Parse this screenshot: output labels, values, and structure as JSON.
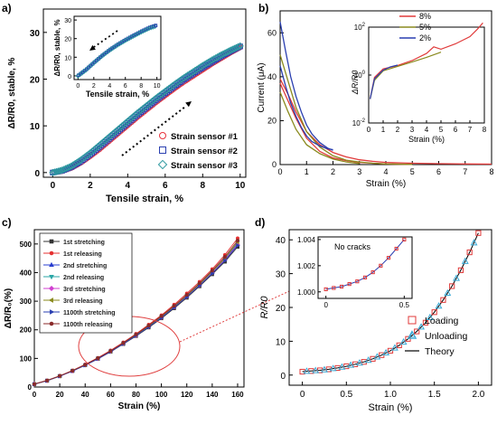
{
  "panel_labels": [
    "a)",
    "b)",
    "c)",
    "d)"
  ],
  "chart_data": [
    {
      "panel": "a)",
      "type": "scatter",
      "xlabel": "Tensile strain, %",
      "ylabel": "ΔR/R0, stable, %",
      "xlim": [
        -0.5,
        10.3
      ],
      "ylim": [
        -1,
        35
      ],
      "xticks": [
        0,
        2,
        4,
        6,
        8,
        10
      ],
      "yticks": [
        0,
        10,
        20,
        30
      ],
      "legend_position": "bottom-right",
      "series": [
        {
          "name": "Strain sensor #1",
          "marker": "circle",
          "color": "#e8323c",
          "x": [
            0,
            0.5,
            1,
            1.5,
            2,
            2.5,
            3,
            3.5,
            4,
            4.5,
            5,
            5.5,
            6,
            6.5,
            7,
            7.5,
            8,
            8.5,
            9,
            9.5,
            10
          ],
          "y": [
            0,
            0.3,
            1.0,
            2.1,
            3.5,
            5.0,
            6.7,
            8.4,
            10.1,
            11.8,
            13.4,
            15.0,
            16.5,
            18.0,
            19.4,
            20.7,
            22.0,
            23.3,
            24.5,
            25.7,
            26.8
          ]
        },
        {
          "name": "Strain sensor #2",
          "marker": "square",
          "color": "#2a3fb0",
          "x": [
            0,
            0.5,
            1,
            1.5,
            2,
            2.5,
            3,
            3.5,
            4,
            4.5,
            5,
            5.5,
            6,
            6.5,
            7,
            7.5,
            8,
            8.5,
            9,
            9.5,
            10
          ],
          "y": [
            0,
            0.4,
            1.2,
            2.4,
            3.9,
            5.5,
            7.2,
            8.9,
            10.6,
            12.3,
            13.9,
            15.5,
            17.0,
            18.5,
            19.9,
            21.2,
            22.5,
            23.7,
            24.9,
            26.0,
            27.0
          ]
        },
        {
          "name": "Strain sensor #3",
          "marker": "diamond",
          "color": "#2f9aa0",
          "x": [
            0,
            0.5,
            1,
            1.5,
            2,
            2.5,
            3,
            3.5,
            4,
            4.5,
            5,
            5.5,
            6,
            6.5,
            7,
            7.5,
            8,
            8.5,
            9,
            9.5,
            10
          ],
          "y": [
            0,
            0.5,
            1.4,
            2.7,
            4.2,
            5.9,
            7.6,
            9.3,
            11.0,
            12.7,
            14.3,
            15.9,
            17.4,
            18.9,
            20.3,
            21.6,
            22.9,
            24.1,
            25.2,
            26.2,
            27.1
          ]
        }
      ],
      "inset": {
        "ylabel": "ΔR/R0, stable, %",
        "xlabel": "Tensile strain, %",
        "xlim": [
          -0.5,
          10.5
        ],
        "ylim": [
          -2,
          32
        ],
        "xticks": [
          0,
          2,
          4,
          6,
          8,
          10
        ],
        "yticks": [
          0,
          10,
          20,
          30
        ],
        "x": [
          0,
          1,
          2,
          3,
          4,
          5,
          6,
          7,
          8,
          9,
          10
        ],
        "y": [
          0,
          3.2,
          7.0,
          10.6,
          13.8,
          16.6,
          19.1,
          21.4,
          23.6,
          25.6,
          27.0
        ]
      }
    },
    {
      "panel": "b)",
      "type": "line",
      "xlabel": "Strain (%)",
      "ylabel": "Current (μA)",
      "xlim": [
        0,
        8
      ],
      "ylim": [
        0,
        70
      ],
      "xticks": [
        0,
        1,
        2,
        3,
        4,
        5,
        6,
        7,
        8
      ],
      "yticks": [
        0,
        20,
        40,
        60
      ],
      "legend_position": "top-right",
      "legend": [
        {
          "name": "8%",
          "color": "#e03a3a"
        },
        {
          "name": "5%",
          "color": "#8a8a1e"
        },
        {
          "name": "2%",
          "color": "#2a3fb0"
        }
      ],
      "series": [
        {
          "color": "#e03a3a",
          "x": [
            0,
            0.3,
            0.6,
            1,
            1.5,
            2,
            2.5,
            3,
            3.5,
            4,
            5,
            6,
            7,
            8
          ],
          "y": [
            39,
            32,
            24,
            15,
            9,
            5.5,
            3.5,
            2.2,
            1.5,
            1.0,
            0.6,
            0.4,
            0.3,
            0.2
          ]
        },
        {
          "color": "#e03a3a",
          "x": [
            0,
            0.3,
            0.6,
            1,
            1.5,
            2,
            2.5,
            3,
            3.5,
            4,
            5
          ],
          "y": [
            37,
            29,
            21,
            12,
            6,
            3,
            1.8,
            1.0,
            0.6,
            0.3,
            0.1
          ]
        },
        {
          "color": "#8a8a1e",
          "x": [
            0,
            0.3,
            0.6,
            1,
            1.5,
            2,
            2.5,
            3,
            3.5,
            4,
            5
          ],
          "y": [
            50,
            38,
            26,
            15,
            8,
            4,
            2,
            1.2,
            0.6,
            0.3,
            0.1
          ]
        },
        {
          "color": "#8a8a1e",
          "x": [
            0,
            0.3,
            0.6,
            1,
            1.5,
            2,
            2.5,
            3
          ],
          "y": [
            33,
            24,
            16,
            9,
            5,
            2.5,
            1.2,
            0.5
          ]
        },
        {
          "color": "#2a3fb0",
          "x": [
            0,
            0.2,
            0.4,
            0.6,
            0.8,
            1,
            1.2,
            1.5,
            1.8,
            2.0
          ],
          "y": [
            65,
            52,
            40,
            31,
            24,
            18,
            14,
            10,
            7.5,
            6.5
          ]
        },
        {
          "color": "#2a3fb0",
          "x": [
            0,
            0.2,
            0.4,
            0.6,
            0.8,
            1,
            1.2,
            1.5,
            1.8,
            2.0
          ],
          "y": [
            45,
            36,
            28,
            22,
            17,
            13,
            10.5,
            8.5,
            7.2,
            6.8
          ]
        }
      ],
      "inset": {
        "ylabel": "ΔR/R0",
        "xlabel": "Strain (%)",
        "xlim": [
          0,
          8
        ],
        "ylog": true,
        "ylim_exp": [
          -2,
          2
        ],
        "xticks": [
          0,
          1,
          2,
          3,
          4,
          5,
          6,
          7,
          8
        ],
        "ytick_exponents": [
          -2,
          0,
          2
        ],
        "series": [
          {
            "color": "#e03a3a",
            "x": [
              0.1,
              0.4,
              1,
              2,
              3,
              4,
              4.5,
              5,
              6,
              7,
              7.5,
              7.9
            ],
            "y": [
              0.1,
              0.8,
              1.8,
              2.5,
              4,
              8,
              15,
              12,
              20,
              40,
              80,
              150
            ]
          },
          {
            "color": "#8a8a1e",
            "x": [
              0.1,
              0.4,
              1,
              2,
              3,
              4,
              4.5,
              5
            ],
            "y": [
              0.1,
              0.6,
              1.5,
              2.3,
              3.5,
              5.5,
              7,
              9
            ]
          },
          {
            "color": "#2a3fb0",
            "x": [
              0.1,
              0.4,
              1,
              1.5,
              2
            ],
            "y": [
              0.1,
              0.7,
              1.6,
              2.2,
              2.6
            ]
          }
        ]
      }
    },
    {
      "panel": "c)",
      "type": "line",
      "xlabel": "Strain (%)",
      "ylabel": "ΔR/R₀(%)",
      "xlim": [
        0,
        165
      ],
      "ylim": [
        0,
        550
      ],
      "xticks": [
        0,
        20,
        40,
        60,
        80,
        100,
        120,
        140,
        160
      ],
      "yticks": [
        0,
        100,
        200,
        300,
        400,
        500
      ],
      "legend_position": "top-left",
      "annotation": "red ellipse with dotted connector to panel d",
      "x": [
        0,
        10,
        20,
        30,
        40,
        50,
        60,
        70,
        80,
        90,
        100,
        110,
        120,
        130,
        140,
        150,
        160
      ],
      "series": [
        {
          "name": "1st stretching",
          "color": "#333333",
          "marker": "square",
          "y": [
            10,
            22,
            38,
            56,
            76,
            98,
            123,
            150,
            178,
            208,
            240,
            275,
            312,
            352,
            394,
            438,
            490
          ]
        },
        {
          "name": "1st releasing",
          "color": "#e53030",
          "marker": "circle",
          "y": [
            11,
            23,
            39,
            58,
            79,
            102,
            128,
            156,
            186,
            218,
            251,
            288,
            327,
            368,
            412,
            462,
            520
          ]
        },
        {
          "name": "2nd stretching",
          "color": "#2a3fd0",
          "marker": "triangle",
          "y": [
            10,
            22,
            38,
            56,
            77,
            99,
            125,
            152,
            181,
            212,
            244,
            280,
            318,
            358,
            401,
            447,
            500
          ]
        },
        {
          "name": "2nd releasing",
          "color": "#2aa6a6",
          "marker": "triangle-down",
          "y": [
            10,
            22,
            38,
            57,
            77,
            100,
            125,
            153,
            182,
            213,
            245,
            281,
            319,
            359,
            402,
            449,
            505
          ]
        },
        {
          "name": "3rd stretching",
          "color": "#d040d0",
          "marker": "diamond",
          "y": [
            10,
            22,
            38,
            56,
            77,
            99,
            124,
            152,
            180,
            211,
            243,
            279,
            316,
            356,
            399,
            445,
            498
          ]
        },
        {
          "name": "3rd releasing",
          "color": "#8a8a1e",
          "marker": "triangle-left",
          "y": [
            10,
            22,
            38,
            57,
            77,
            100,
            125,
            153,
            182,
            213,
            246,
            282,
            320,
            360,
            404,
            450,
            507
          ]
        },
        {
          "name": "1100th stretching",
          "color": "#2a3fb0",
          "marker": "triangle-right",
          "y": [
            10,
            22,
            38,
            56,
            76,
            99,
            124,
            151,
            180,
            210,
            242,
            278,
            315,
            355,
            397,
            442,
            495
          ]
        },
        {
          "name": "1100th releasing",
          "color": "#8a2a2a",
          "marker": "hexagon",
          "y": [
            10,
            23,
            39,
            57,
            78,
            101,
            126,
            154,
            184,
            215,
            248,
            284,
            322,
            363,
            407,
            455,
            512
          ]
        }
      ]
    },
    {
      "panel": "d)",
      "type": "scatter",
      "xlabel": "Strain (%)",
      "ylabel": "R/R0",
      "xlim": [
        -0.15,
        2.15
      ],
      "ylim": [
        -3,
        43
      ],
      "xticks": [
        0,
        0.5,
        1.0,
        1.5,
        2.0
      ],
      "yticks": [
        0,
        10,
        20,
        30,
        40
      ],
      "legend_position": "bottom-right",
      "series": [
        {
          "name": "Loading",
          "marker": "square",
          "color": "#e03a3a",
          "x": [
            0,
            0.1,
            0.2,
            0.3,
            0.4,
            0.5,
            0.6,
            0.7,
            0.8,
            0.9,
            1.0,
            1.1,
            1.2,
            1.3,
            1.4,
            1.5,
            1.6,
            1.7,
            1.8,
            1.9,
            2.0
          ],
          "y": [
            1.0,
            1.2,
            1.4,
            1.7,
            2.1,
            2.6,
            3.2,
            3.9,
            4.8,
            5.9,
            7.2,
            8.8,
            10.7,
            12.9,
            15.5,
            18.6,
            22.2,
            26.3,
            31.0,
            36.3,
            42.0
          ]
        },
        {
          "name": "Unloading",
          "marker": "triangle",
          "color": "#3aaad6",
          "x": [
            0.05,
            0.15,
            0.25,
            0.35,
            0.45,
            0.55,
            0.65,
            0.75,
            0.85,
            0.95,
            1.05,
            1.15,
            1.25,
            1.35,
            1.45,
            1.55,
            1.65,
            1.75,
            1.85,
            1.95
          ],
          "y": [
            1.1,
            1.3,
            1.55,
            1.9,
            2.35,
            2.9,
            3.55,
            4.35,
            5.35,
            6.55,
            8.0,
            9.75,
            11.8,
            14.2,
            17.0,
            20.4,
            24.2,
            28.6,
            33.6,
            39.1
          ]
        },
        {
          "name": "Theory",
          "marker": "none",
          "color": "#000000",
          "x": [
            0,
            0.1,
            0.2,
            0.3,
            0.4,
            0.5,
            0.6,
            0.7,
            0.8,
            0.9,
            1.0,
            1.1,
            1.2,
            1.3,
            1.4,
            1.5,
            1.6,
            1.7,
            1.8,
            1.9,
            2.0
          ],
          "y": [
            1.0,
            1.2,
            1.4,
            1.7,
            2.1,
            2.6,
            3.2,
            3.9,
            4.8,
            5.9,
            7.2,
            8.8,
            10.7,
            12.9,
            15.5,
            18.6,
            22.2,
            26.3,
            31.0,
            36.3,
            42.0
          ]
        }
      ],
      "inset": {
        "title": "No cracks",
        "xlim": [
          -0.05,
          0.55
        ],
        "ylim": [
          0.9995,
          1.0042
        ],
        "xticks": [
          0,
          0.5
        ],
        "yticks": [
          1.0,
          1.002,
          1.004
        ],
        "ytick_labels": [
          "1.000",
          "1.002",
          "1.004"
        ],
        "x": [
          0,
          0.05,
          0.1,
          0.15,
          0.2,
          0.25,
          0.3,
          0.35,
          0.4,
          0.45,
          0.5
        ],
        "y": [
          1.0002,
          1.0003,
          1.0004,
          1.0006,
          1.0008,
          1.0011,
          1.0015,
          1.002,
          1.0026,
          1.0033,
          1.004
        ]
      }
    }
  ]
}
